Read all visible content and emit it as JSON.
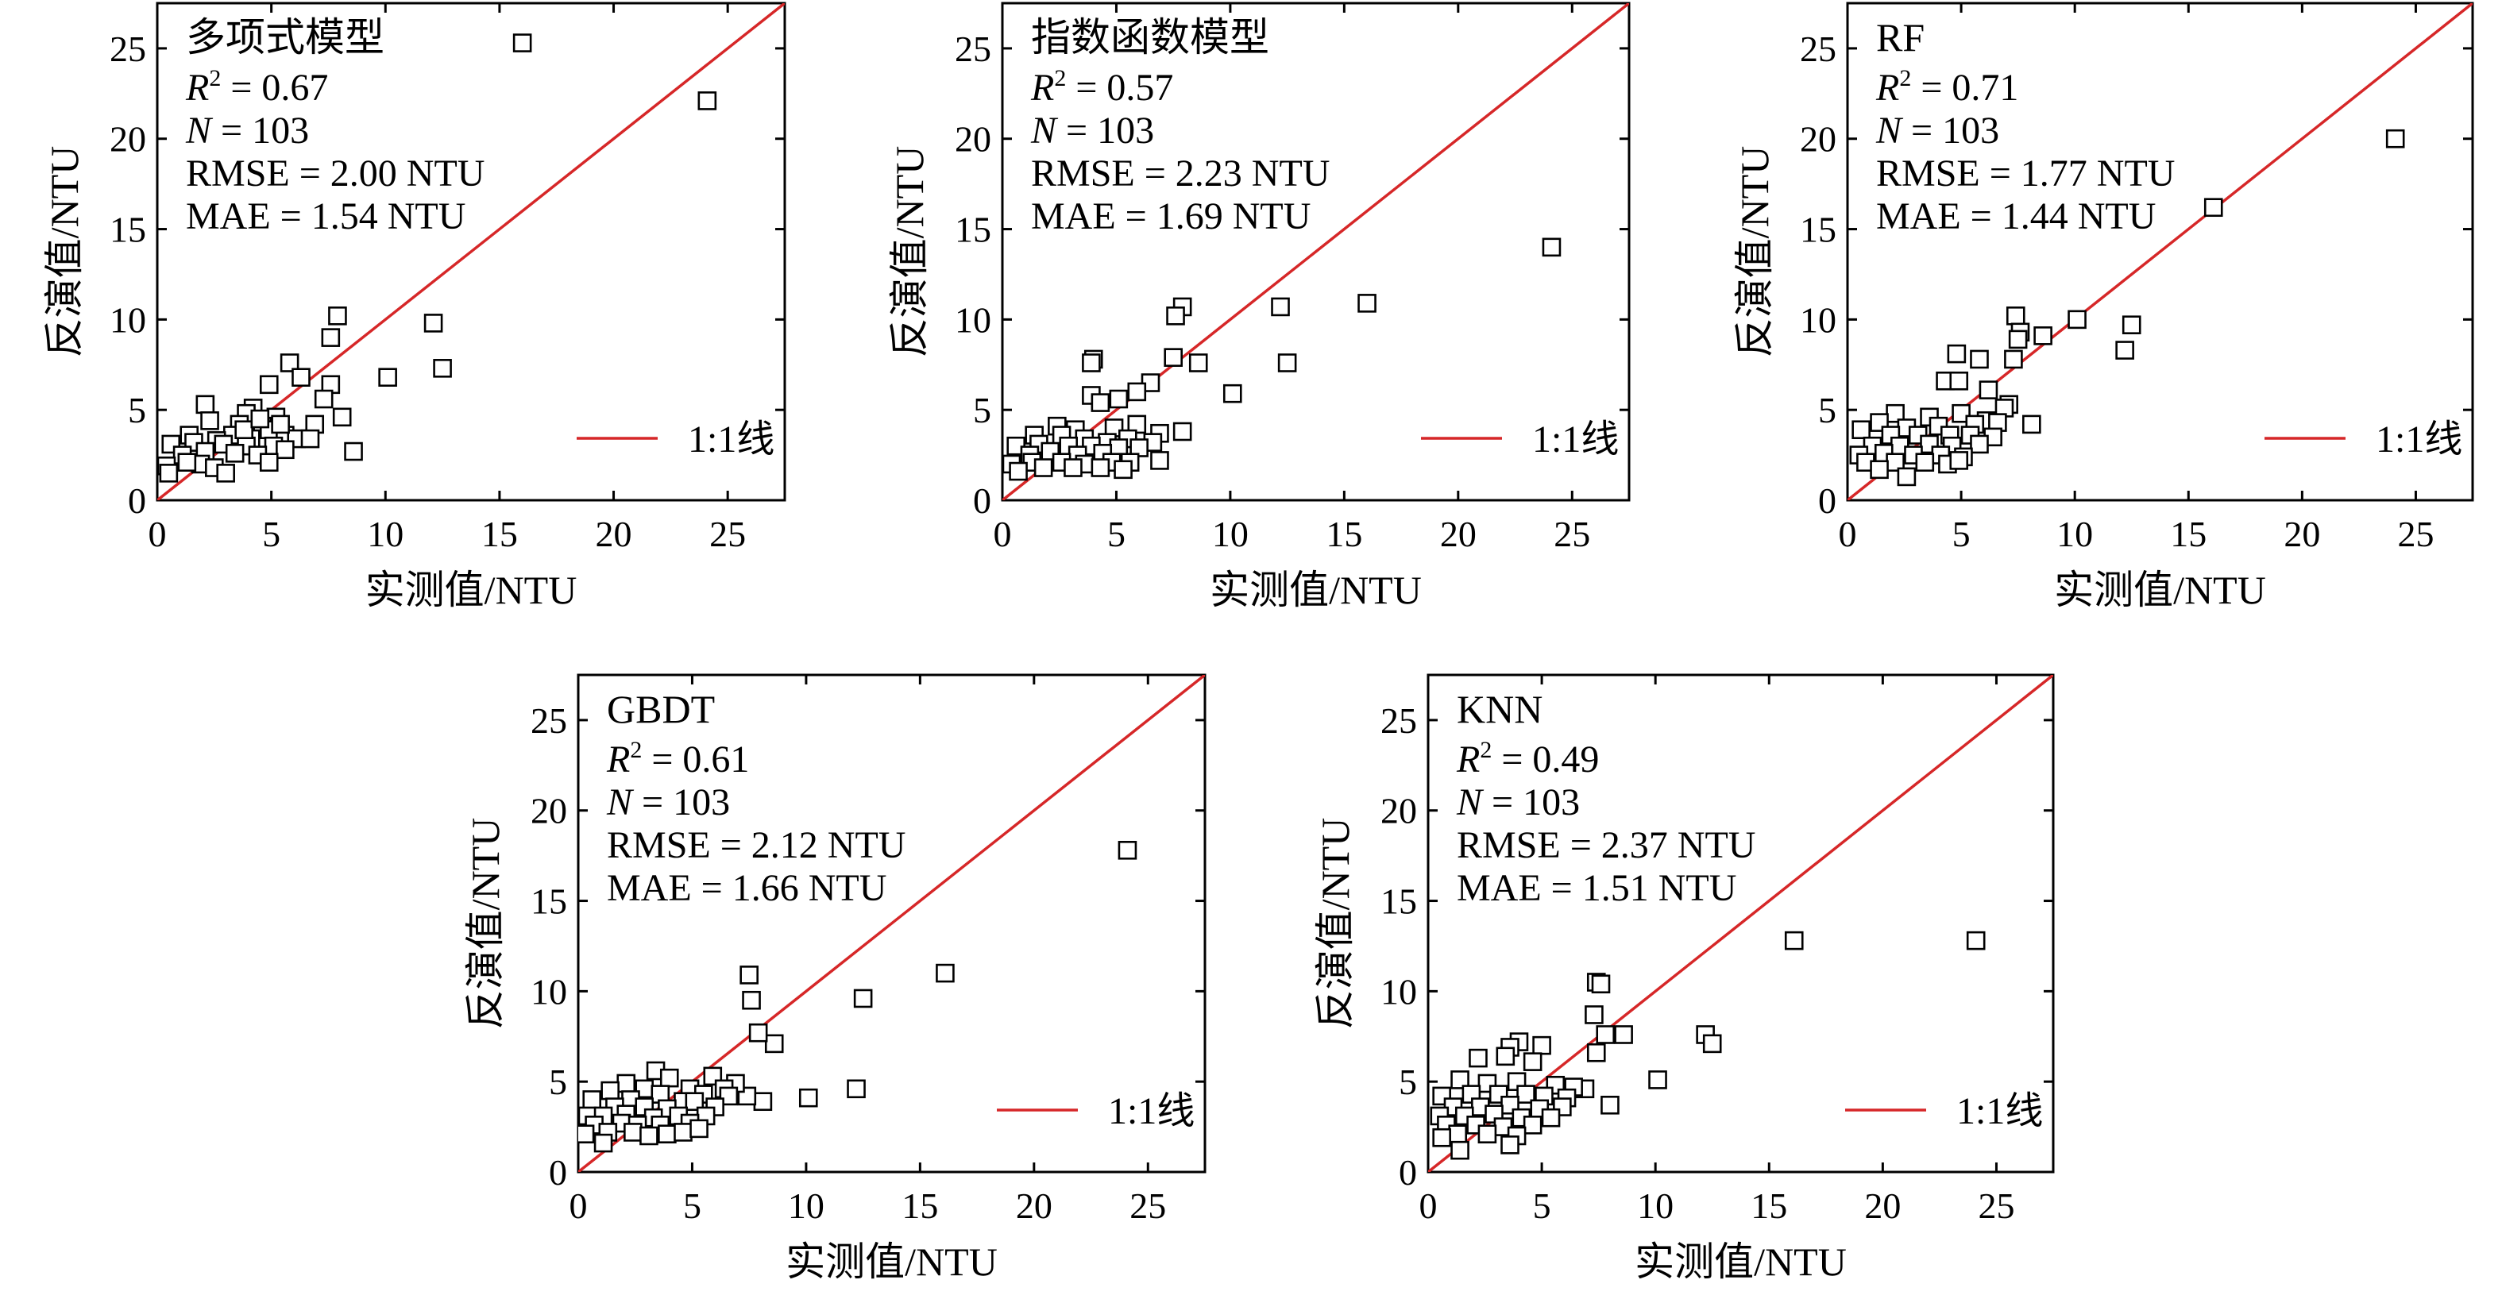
{
  "figure": {
    "colors": {
      "reference_line": "#d62728",
      "marker_edge": "#000000",
      "marker_fill": "#ffffff"
    },
    "x_axis_title": "实测值/NTU",
    "y_axis_title": "反演值/NTU",
    "legend_label": "1:1线"
  },
  "chart_data": [
    {
      "type": "scatter",
      "title": "多项式模型",
      "stats": {
        "r2_label": "R",
        "r2_sup": "2",
        "r2": "= 0.67",
        "n_label": "N",
        "n": "= 103",
        "rmse": "RMSE = 2.00 NTU",
        "mae": "MAE = 1.54 NTU"
      },
      "xlim": [
        0,
        27.5
      ],
      "ylim": [
        0,
        27.5
      ],
      "xticks": [
        0,
        5,
        10,
        15,
        20,
        25
      ],
      "yticks": [
        0,
        5,
        10,
        15,
        20,
        25
      ],
      "reference_line": "1:1",
      "points": [
        [
          16,
          25.3
        ],
        [
          24.1,
          22.1
        ],
        [
          12.1,
          9.8
        ],
        [
          12.5,
          7.3
        ],
        [
          10.1,
          6.8
        ],
        [
          8.6,
          2.7
        ],
        [
          7.9,
          10.2
        ],
        [
          7.6,
          9
        ],
        [
          5.8,
          7.6
        ],
        [
          7.6,
          6.4
        ],
        [
          6.3,
          6.8
        ],
        [
          8.1,
          4.6
        ],
        [
          4.9,
          6.4
        ],
        [
          2.1,
          5.3
        ],
        [
          7.3,
          5.6
        ],
        [
          4.2,
          5.1
        ],
        [
          3.9,
          4.8
        ],
        [
          5.2,
          4.6
        ],
        [
          6.9,
          4.2
        ],
        [
          4.6,
          4.1
        ],
        [
          2.3,
          4.4
        ],
        [
          3.6,
          4.2
        ],
        [
          4.9,
          3.9
        ],
        [
          5.6,
          3.6
        ],
        [
          3.3,
          3.6
        ],
        [
          1.4,
          3.6
        ],
        [
          2.6,
          3.3
        ],
        [
          4.1,
          3.4
        ],
        [
          6.1,
          3.4
        ],
        [
          6.7,
          3.4
        ],
        [
          0.6,
          3.1
        ],
        [
          1.6,
          3.2
        ],
        [
          2.9,
          3.1
        ],
        [
          3.9,
          3.0
        ],
        [
          5.1,
          3.0
        ],
        [
          5.6,
          2.8
        ],
        [
          2.1,
          2.7
        ],
        [
          1.1,
          2.5
        ],
        [
          3.4,
          2.6
        ],
        [
          4.4,
          2.5
        ],
        [
          0.4,
          1.9
        ],
        [
          1.9,
          2.0
        ],
        [
          2.5,
          1.8
        ],
        [
          3.0,
          1.5
        ],
        [
          4.9,
          2.1
        ],
        [
          0.5,
          1.5
        ],
        [
          1.3,
          2.1
        ],
        [
          3.8,
          3.9
        ],
        [
          4.5,
          4.5
        ],
        [
          5.4,
          4.2
        ]
      ]
    },
    {
      "type": "scatter",
      "title": "指数函数模型",
      "stats": {
        "r2_label": "R",
        "r2_sup": "2",
        "r2": "= 0.57",
        "n_label": "N",
        "n": "= 103",
        "rmse": "RMSE = 2.23 NTU",
        "mae": "MAE = 1.69 NTU"
      },
      "xlim": [
        0,
        27.5
      ],
      "ylim": [
        0,
        27.5
      ],
      "xticks": [
        0,
        5,
        10,
        15,
        20,
        25
      ],
      "yticks": [
        0,
        5,
        10,
        15,
        20,
        25
      ],
      "reference_line": "1:1",
      "points": [
        [
          24.1,
          14
        ],
        [
          16,
          10.9
        ],
        [
          12.2,
          10.7
        ],
        [
          12.5,
          7.6
        ],
        [
          10.1,
          5.9
        ],
        [
          7.9,
          10.7
        ],
        [
          7.6,
          10.2
        ],
        [
          7.5,
          7.9
        ],
        [
          8.6,
          7.6
        ],
        [
          4,
          7.8
        ],
        [
          3.9,
          7.6
        ],
        [
          6.5,
          6.5
        ],
        [
          5.9,
          6.0
        ],
        [
          3.9,
          5.8
        ],
        [
          4.3,
          5.4
        ],
        [
          5.1,
          5.6
        ],
        [
          7.9,
          3.8
        ],
        [
          6.9,
          3.7
        ],
        [
          2.4,
          4.1
        ],
        [
          3.2,
          3.9
        ],
        [
          4.9,
          4.0
        ],
        [
          5.9,
          4.2
        ],
        [
          1.4,
          3.6
        ],
        [
          2.6,
          3.6
        ],
        [
          3.6,
          3.4
        ],
        [
          4.6,
          3.2
        ],
        [
          5.5,
          3.4
        ],
        [
          6.6,
          3.2
        ],
        [
          0.6,
          3.0
        ],
        [
          1.6,
          3.1
        ],
        [
          2.9,
          3.0
        ],
        [
          3.9,
          3.0
        ],
        [
          5.1,
          2.9
        ],
        [
          6.0,
          2.9
        ],
        [
          1.2,
          2.5
        ],
        [
          2.1,
          2.7
        ],
        [
          3.3,
          2.5
        ],
        [
          4.4,
          2.6
        ],
        [
          0.4,
          2.0
        ],
        [
          1.3,
          2.1
        ],
        [
          2.6,
          2.1
        ],
        [
          3.6,
          2.0
        ],
        [
          4.8,
          2.1
        ],
        [
          5.6,
          2.1
        ],
        [
          6.9,
          2.2
        ],
        [
          0.7,
          1.6
        ],
        [
          1.8,
          1.8
        ],
        [
          3.1,
          1.8
        ],
        [
          4.3,
          1.8
        ],
        [
          5.3,
          1.7
        ]
      ]
    },
    {
      "type": "scatter",
      "title": "RF",
      "stats": {
        "r2_label": "R",
        "r2_sup": "2",
        "r2": "= 0.71",
        "n_label": "N",
        "n": "= 103",
        "rmse": "RMSE = 1.77 NTU",
        "mae": "MAE = 1.44 NTU"
      },
      "xlim": [
        0,
        27.5
      ],
      "ylim": [
        0,
        27.5
      ],
      "xticks": [
        0,
        5,
        10,
        15,
        20,
        25
      ],
      "yticks": [
        0,
        5,
        10,
        15,
        20,
        25
      ],
      "reference_line": "1:1",
      "points": [
        [
          24.1,
          20
        ],
        [
          16.1,
          16.2
        ],
        [
          10.1,
          10
        ],
        [
          12.5,
          9.7
        ],
        [
          12.2,
          8.3
        ],
        [
          7.4,
          10.2
        ],
        [
          7.6,
          9.3
        ],
        [
          8.6,
          9.1
        ],
        [
          7.5,
          8.9
        ],
        [
          7.3,
          7.8
        ],
        [
          4.8,
          8.1
        ],
        [
          5.8,
          7.8
        ],
        [
          4.3,
          6.6
        ],
        [
          4.9,
          6.6
        ],
        [
          6.2,
          6.1
        ],
        [
          7.1,
          5.3
        ],
        [
          6.9,
          5.1
        ],
        [
          8.1,
          4.2
        ],
        [
          2.1,
          4.8
        ],
        [
          3.6,
          4.6
        ],
        [
          5.0,
          4.8
        ],
        [
          6.1,
          4.4
        ],
        [
          1.4,
          4.3
        ],
        [
          2.6,
          4.0
        ],
        [
          4.0,
          4.1
        ],
        [
          5.6,
          4.2
        ],
        [
          6.6,
          4.3
        ],
        [
          0.6,
          3.9
        ],
        [
          1.9,
          3.6
        ],
        [
          3.1,
          3.6
        ],
        [
          4.5,
          3.6
        ],
        [
          5.4,
          3.6
        ],
        [
          6.4,
          3.5
        ],
        [
          1.1,
          3.0
        ],
        [
          2.3,
          3.0
        ],
        [
          3.6,
          3.1
        ],
        [
          4.6,
          3.0
        ],
        [
          5.8,
          3.1
        ],
        [
          0.5,
          2.5
        ],
        [
          1.6,
          2.6
        ],
        [
          2.9,
          2.5
        ],
        [
          4.1,
          2.5
        ],
        [
          5.1,
          2.4
        ],
        [
          0.8,
          2.1
        ],
        [
          2.1,
          2.1
        ],
        [
          3.4,
          2.1
        ],
        [
          4.4,
          2.0
        ],
        [
          1.4,
          1.7
        ],
        [
          2.6,
          1.3
        ],
        [
          4.9,
          2.2
        ]
      ]
    },
    {
      "type": "scatter",
      "title": "GBDT",
      "stats": {
        "r2_label": "R",
        "r2_sup": "2",
        "r2": "= 0.61",
        "n_label": "N",
        "n": "= 103",
        "rmse": "RMSE = 2.12 NTU",
        "mae": "MAE = 1.66 NTU"
      },
      "xlim": [
        0,
        27.5
      ],
      "ylim": [
        0,
        27.5
      ],
      "xticks": [
        0,
        5,
        10,
        15,
        20,
        25
      ],
      "yticks": [
        0,
        5,
        10,
        15,
        20,
        25
      ],
      "reference_line": "1:1",
      "points": [
        [
          24.1,
          17.8
        ],
        [
          16.1,
          11
        ],
        [
          12.5,
          9.6
        ],
        [
          12.2,
          4.6
        ],
        [
          10.1,
          4.1
        ],
        [
          7.5,
          10.9
        ],
        [
          7.6,
          9.5
        ],
        [
          8.6,
          7.1
        ],
        [
          7.9,
          7.7
        ],
        [
          8.1,
          3.9
        ],
        [
          7.4,
          4.2
        ],
        [
          3.4,
          5.6
        ],
        [
          5.9,
          5.3
        ],
        [
          6.9,
          4.9
        ],
        [
          4.0,
          5.2
        ],
        [
          2.1,
          4.9
        ],
        [
          2.9,
          4.6
        ],
        [
          4.9,
          4.6
        ],
        [
          6.4,
          4.6
        ],
        [
          1.4,
          4.5
        ],
        [
          3.6,
          4.3
        ],
        [
          5.5,
          4.3
        ],
        [
          6.6,
          4.2
        ],
        [
          0.6,
          4.0
        ],
        [
          2.3,
          4.0
        ],
        [
          4.6,
          3.9
        ],
        [
          5.1,
          3.9
        ],
        [
          1.6,
          3.6
        ],
        [
          2.9,
          3.6
        ],
        [
          3.9,
          3.5
        ],
        [
          6.0,
          3.6
        ],
        [
          0.4,
          3.1
        ],
        [
          1.1,
          3.1
        ],
        [
          2.1,
          3.2
        ],
        [
          3.3,
          3.0
        ],
        [
          4.4,
          3.1
        ],
        [
          5.6,
          3.1
        ],
        [
          0.7,
          2.6
        ],
        [
          1.9,
          2.7
        ],
        [
          2.6,
          2.6
        ],
        [
          3.6,
          2.6
        ],
        [
          4.9,
          2.7
        ],
        [
          0.3,
          2.1
        ],
        [
          1.3,
          2.2
        ],
        [
          2.4,
          2.2
        ],
        [
          3.9,
          2.1
        ],
        [
          4.6,
          2.2
        ],
        [
          1.1,
          1.6
        ],
        [
          3.1,
          2.0
        ],
        [
          5.3,
          2.4
        ]
      ]
    },
    {
      "type": "scatter",
      "title": "KNN",
      "stats": {
        "r2_label": "R",
        "r2_sup": "2",
        "r2": "= 0.49",
        "n_label": "N",
        "n": "= 103",
        "rmse": "RMSE = 2.37 NTU",
        "mae": "MAE = 1.51 NTU"
      },
      "xlim": [
        0,
        27.5
      ],
      "ylim": [
        0,
        27.5
      ],
      "xticks": [
        0,
        5,
        10,
        15,
        20,
        25
      ],
      "yticks": [
        0,
        5,
        10,
        15,
        20,
        25
      ],
      "reference_line": "1:1",
      "points": [
        [
          16.1,
          12.8
        ],
        [
          24.1,
          12.8
        ],
        [
          7.4,
          10.5
        ],
        [
          7.6,
          10.4
        ],
        [
          7.3,
          8.7
        ],
        [
          8.6,
          7.6
        ],
        [
          7.8,
          7.6
        ],
        [
          12.2,
          7.6
        ],
        [
          12.5,
          7.1
        ],
        [
          4.0,
          7.2
        ],
        [
          3.6,
          6.9
        ],
        [
          5.0,
          7.0
        ],
        [
          3.4,
          6.4
        ],
        [
          2.2,
          6.3
        ],
        [
          4.6,
          6.1
        ],
        [
          7.4,
          6.6
        ],
        [
          10.1,
          5.1
        ],
        [
          6.9,
          4.6
        ],
        [
          1.4,
          5.1
        ],
        [
          2.6,
          4.9
        ],
        [
          3.9,
          5.0
        ],
        [
          5.6,
          4.8
        ],
        [
          6.4,
          4.7
        ],
        [
          0.6,
          4.2
        ],
        [
          1.9,
          4.3
        ],
        [
          3.1,
          4.3
        ],
        [
          4.3,
          4.3
        ],
        [
          5.1,
          4.2
        ],
        [
          6.1,
          4.1
        ],
        [
          1.1,
          3.6
        ],
        [
          2.3,
          3.6
        ],
        [
          3.6,
          3.7
        ],
        [
          4.9,
          3.5
        ],
        [
          5.9,
          3.6
        ],
        [
          8.0,
          3.7
        ],
        [
          0.5,
          3.1
        ],
        [
          1.6,
          3.1
        ],
        [
          2.9,
          3.2
        ],
        [
          4.1,
          3.0
        ],
        [
          5.4,
          3.0
        ],
        [
          0.8,
          2.6
        ],
        [
          2.1,
          2.6
        ],
        [
          3.3,
          2.5
        ],
        [
          4.6,
          2.6
        ],
        [
          1.3,
          2.1
        ],
        [
          2.6,
          2.1
        ],
        [
          3.9,
          2.0
        ],
        [
          0.6,
          1.9
        ],
        [
          1.4,
          1.2
        ],
        [
          3.6,
          1.5
        ]
      ]
    }
  ]
}
